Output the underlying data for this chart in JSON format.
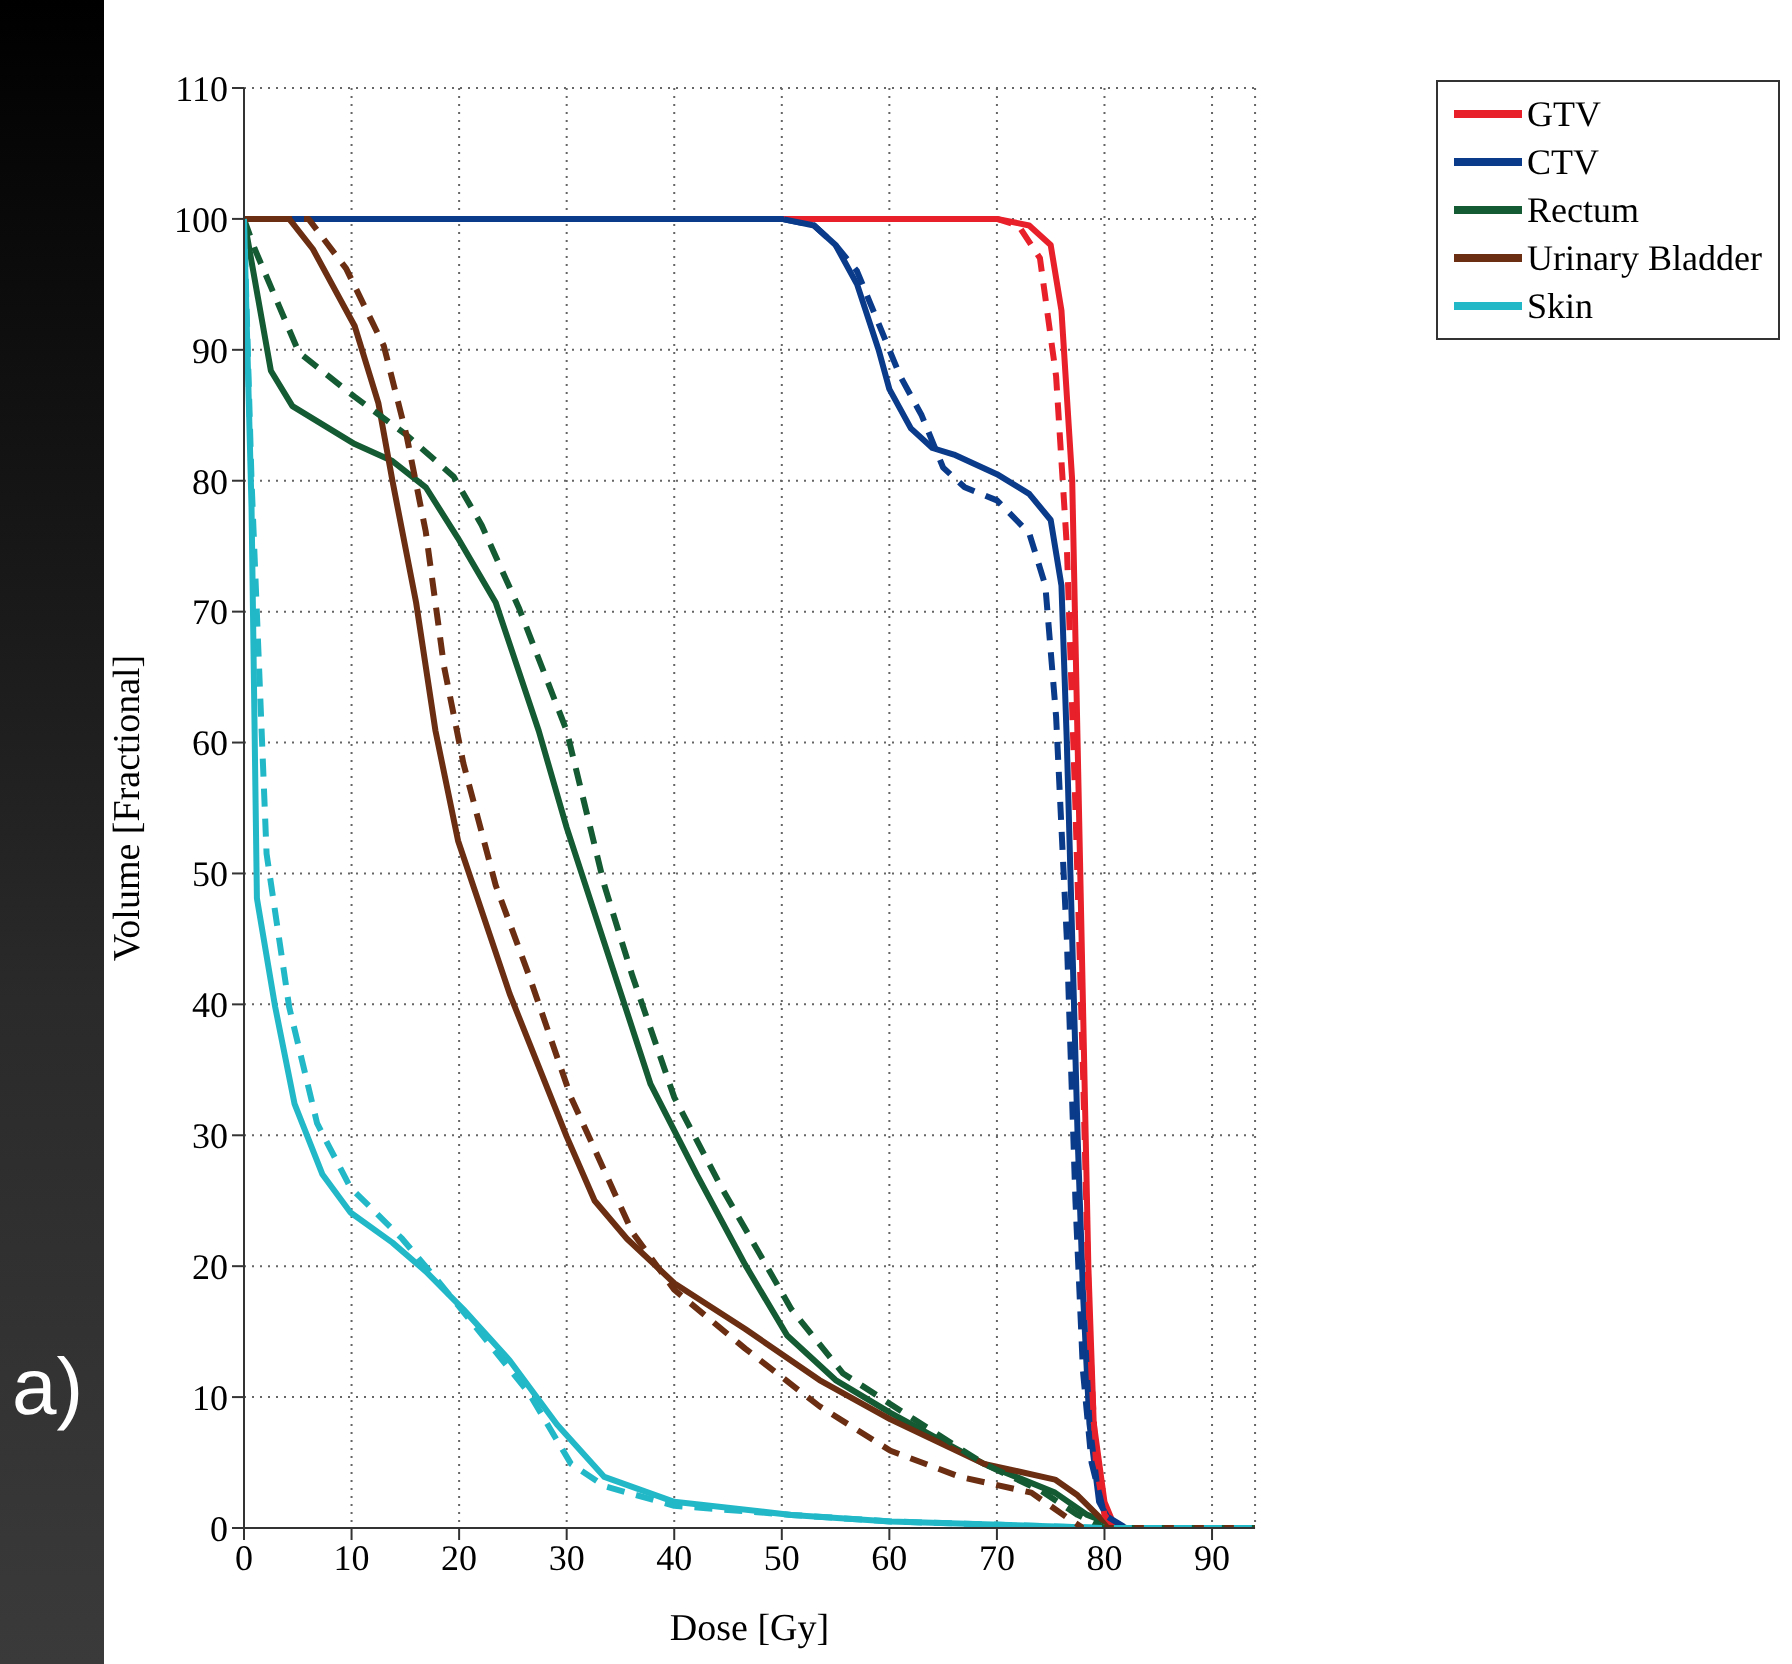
{
  "chart_data": {
    "type": "line",
    "xlabel": "Dose [Gy]",
    "ylabel": "Volume [Fractional]",
    "annotations": [
      "a)"
    ],
    "xlim": [
      0,
      94
    ],
    "xticks": [
      0,
      10,
      20,
      30,
      40,
      50,
      60,
      70,
      80,
      90
    ],
    "ylim": [
      0,
      110
    ],
    "yticks": [
      0,
      10,
      20,
      30,
      40,
      50,
      60,
      70,
      80,
      90,
      100,
      110
    ],
    "grid": true,
    "legend": "top right",
    "marker": "none",
    "line_style": "solid",
    "series": [
      {
        "name": "GTV",
        "color": "#e8202a",
        "x": [
          0,
          70,
          73,
          75,
          76,
          77,
          77.5,
          78,
          78.5,
          79,
          80,
          81,
          94
        ],
        "values": [
          100,
          100,
          99.5,
          98,
          93,
          80,
          60,
          40,
          20,
          8,
          2,
          0,
          0
        ]
      },
      {
        "name": "CTV",
        "color": "#0a3a8a",
        "x": [
          0,
          50,
          53,
          55,
          57,
          59,
          60,
          62,
          64,
          66,
          70,
          73,
          75,
          76,
          76.5,
          77,
          77.5,
          78,
          78.6,
          79.5,
          80.5,
          82,
          94
        ],
        "values": [
          100,
          100,
          99.5,
          98,
          95,
          90,
          87,
          84,
          82.5,
          82,
          80.5,
          79,
          77,
          72,
          60,
          45,
          30,
          18,
          8,
          2,
          0.5,
          0,
          0
        ]
      },
      {
        "name": "Rectum",
        "color": "#145a32",
        "x": [
          0,
          2.5,
          4.5,
          10.3,
          13.8,
          16.9,
          19.9,
          23.4,
          27.4,
          30,
          33.5,
          37.8,
          42.1,
          46.6,
          50.5,
          55,
          60.1,
          68.8,
          75.4,
          78.4,
          80.6,
          82,
          94
        ],
        "values": [
          100,
          88.4,
          85.7,
          82.8,
          81.5,
          79.5,
          75.6,
          70.7,
          60.9,
          53.5,
          44.7,
          33.9,
          27,
          20.1,
          14.7,
          11.3,
          8.8,
          4.9,
          2.7,
          1,
          0.3,
          0,
          0
        ]
      },
      {
        "name": "Urinary Bladder",
        "color": "#6b2e12",
        "x": [
          0,
          4.2,
          6.4,
          10.3,
          12.5,
          13.8,
          16,
          17.8,
          19.9,
          24.7,
          30,
          32.6,
          35.6,
          40,
          46.6,
          53.5,
          60.1,
          68.8,
          75.4,
          77.5,
          79.7,
          81,
          94
        ],
        "values": [
          100,
          100,
          97.7,
          91.8,
          85.9,
          80,
          70.7,
          60.9,
          52.5,
          40.8,
          29.9,
          25,
          22.1,
          18.7,
          15.2,
          11.3,
          8.3,
          4.9,
          3.7,
          2.5,
          0.7,
          0,
          0
        ]
      },
      {
        "name": "Skin",
        "color": "#22b8c8",
        "x": [
          0,
          0.7,
          1.2,
          2.9,
          4.7,
          7.3,
          9.9,
          13.8,
          16.9,
          20.4,
          24.7,
          29.1,
          33.5,
          40,
          50.9,
          60.1,
          80,
          94
        ],
        "values": [
          100,
          78,
          48.1,
          39.8,
          32.4,
          27,
          24.1,
          21.8,
          19.6,
          16.7,
          12.8,
          7.9,
          3.9,
          2,
          1,
          0.5,
          0,
          0
        ]
      },
      {
        "color": "#e8202a",
        "line_style": "dashed",
        "x": [
          0,
          70,
          72,
          74,
          75.5,
          76.5,
          77.3,
          78,
          78.6,
          79.2,
          80,
          81,
          94
        ],
        "values": [
          100,
          100,
          99.5,
          97,
          88,
          75,
          55,
          35,
          15,
          5,
          1,
          0,
          0
        ]
      },
      {
        "color": "#0a3a8a",
        "line_style": "dashed",
        "x": [
          0,
          50,
          53,
          55,
          57,
          59,
          61,
          63,
          65,
          67,
          70,
          73,
          74.5,
          75.5,
          76.5,
          77.3,
          78,
          78.8,
          80,
          82,
          94
        ],
        "values": [
          100,
          100,
          99.5,
          98,
          96,
          92,
          88,
          85,
          81,
          79.5,
          78.5,
          76,
          72,
          62,
          45,
          25,
          12,
          5,
          1,
          0,
          0
        ]
      },
      {
        "color": "#145a32",
        "line_style": "dashed",
        "x": [
          0,
          1,
          5.1,
          10.3,
          15.1,
          19.5,
          22.1,
          25.6,
          30,
          33.5,
          36.1,
          40,
          44.4,
          50.9,
          55.7,
          62.3,
          68.8,
          74,
          77.5,
          80,
          94
        ],
        "values": [
          100,
          97.7,
          89.8,
          86.4,
          83.5,
          80.3,
          76.6,
          70.2,
          60.9,
          49.1,
          42.2,
          32.9,
          26,
          16.7,
          11.8,
          8.3,
          4.9,
          2.9,
          1,
          0,
          0
        ]
      },
      {
        "color": "#6b2e12",
        "line_style": "dashed",
        "x": [
          0,
          6,
          9.5,
          13,
          15.1,
          16.9,
          18.6,
          20.4,
          23.4,
          26.5,
          30.4,
          36.1,
          40,
          46.6,
          53.5,
          60.1,
          66.6,
          73.2,
          76.7,
          78,
          94
        ],
        "values": [
          100,
          100,
          96.2,
          90.3,
          83.5,
          76.1,
          65.8,
          58.4,
          49.1,
          42.2,
          32.9,
          22.6,
          18.2,
          13.7,
          9.3,
          5.9,
          3.9,
          2.7,
          0.7,
          0,
          0
        ]
      },
      {
        "color": "#22b8c8",
        "line_style": "dashed",
        "x": [
          0,
          0.7,
          2.1,
          4.2,
          6.8,
          9.9,
          14.7,
          17.8,
          21.2,
          26.5,
          30.4,
          33.5,
          40,
          50.9,
          60.1,
          80,
          94
        ],
        "values": [
          100,
          80,
          51.5,
          39.8,
          30.9,
          26,
          22.1,
          19.1,
          15.7,
          10.3,
          4.9,
          3.2,
          1.7,
          1,
          0.5,
          0,
          0
        ]
      }
    ]
  }
}
